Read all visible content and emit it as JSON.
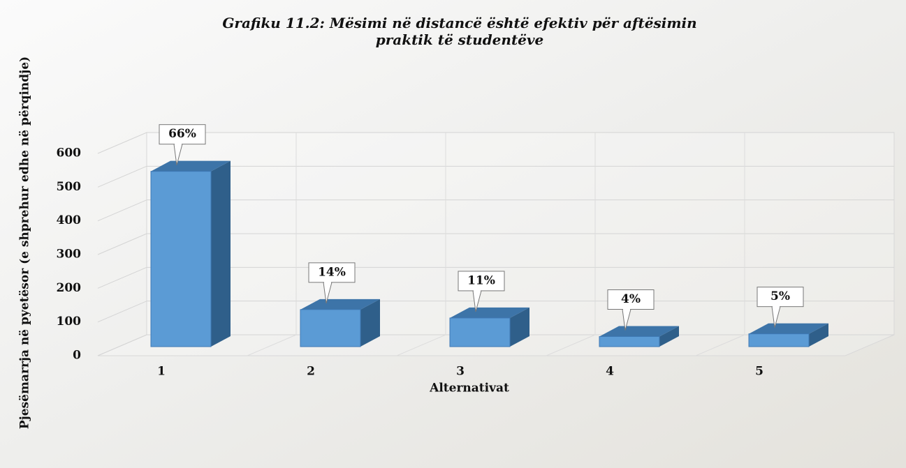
{
  "chart_data": {
    "type": "bar3d",
    "title": "Grafiku 11.2: Mësimi në distancë është efektiv për aftësimin praktik të studentëve",
    "y_label": "Pjesëmarrja në pyetësor (e shprehur edhe në përqindje)",
    "x_label": "Alternativat",
    "categories": [
      "1",
      "2",
      "3",
      "4",
      "5"
    ],
    "values": [
      520,
      110,
      85,
      30,
      38
    ],
    "value_labels": [
      "66%",
      "14%",
      "11%",
      "4%",
      "5%"
    ],
    "color": "#5b9bd5",
    "ylim": [
      0,
      600
    ],
    "yticks": [
      0,
      100,
      200,
      300,
      400,
      500,
      600
    ],
    "grid": true
  }
}
